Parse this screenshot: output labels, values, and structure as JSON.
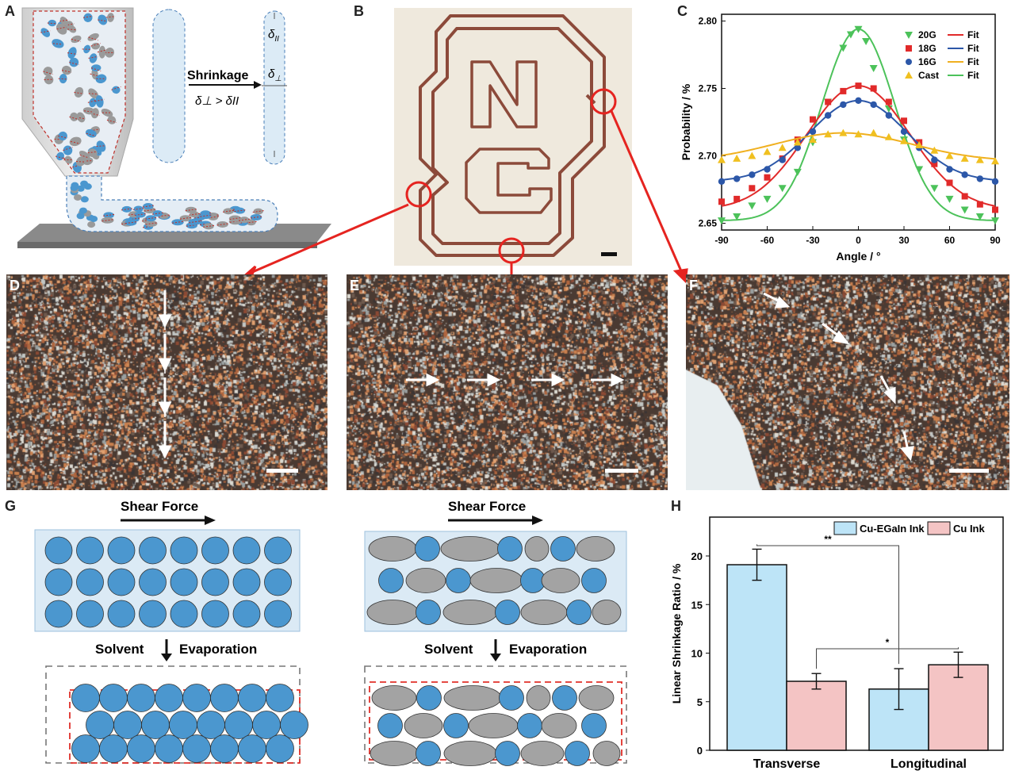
{
  "panels": {
    "A": {
      "label": "A",
      "shrinkage_label": "Shrinkage",
      "delta_parallel": "δ",
      "delta_parallel_sub": "II",
      "delta_perp": "δ",
      "delta_perp_sub": "⊥",
      "relation": "δ⊥ > δII"
    },
    "B": {
      "label": "B",
      "letters": [
        "N",
        "C"
      ]
    },
    "C": {
      "label": "C"
    },
    "D": {
      "label": "D"
    },
    "E": {
      "label": "E"
    },
    "F": {
      "label": "F"
    },
    "G": {
      "label": "G",
      "shear_force": "Shear Force",
      "solvent": "Solvent",
      "evaporation": "Evaporation"
    },
    "H": {
      "label": "H"
    }
  },
  "colors": {
    "blue_particle": "#4b97cf",
    "gray_particle": "#a3a3a3",
    "light_blue_box": "#dbeaf5",
    "red_dash": "#e0302a",
    "copper": "#8c4a3a",
    "bar_blue": "#bde4f7",
    "bar_pink": "#f4c4c4"
  },
  "chart_data": [
    {
      "type": "scatter",
      "panel": "C",
      "xlabel": "Angle / °",
      "ylabel": "Probability / %",
      "xlim": [
        -90,
        90
      ],
      "ylim": [
        2.645,
        2.805
      ],
      "xticks": [
        "-90",
        "-60",
        "-30",
        "0",
        "30",
        "60",
        "90"
      ],
      "yticks": [
        "2.65",
        "2.70",
        "2.75",
        "2.80"
      ],
      "legend_position": "top-right",
      "legend_fit_label": "Fit",
      "series": [
        {
          "name": "20G",
          "marker": "triangle-down",
          "color": "#4cc25a",
          "fit_color": "#e12a2a",
          "x": [
            -90,
            -80,
            -70,
            -60,
            -50,
            -40,
            -30,
            -20,
            -10,
            -5,
            0,
            5,
            10,
            20,
            30,
            40,
            50,
            60,
            70,
            80,
            90
          ],
          "y": [
            2.652,
            2.655,
            2.663,
            2.668,
            2.676,
            2.688,
            2.71,
            2.74,
            2.78,
            2.79,
            2.794,
            2.785,
            2.765,
            2.735,
            2.712,
            2.69,
            2.676,
            2.668,
            2.66,
            2.655,
            2.652
          ]
        },
        {
          "name": "18G",
          "marker": "square",
          "color": "#e12a2a",
          "fit_color": "#2c57a8",
          "x": [
            -90,
            -80,
            -70,
            -60,
            -50,
            -40,
            -30,
            -20,
            -10,
            0,
            10,
            20,
            30,
            40,
            50,
            60,
            70,
            80,
            90
          ],
          "y": [
            2.666,
            2.668,
            2.676,
            2.684,
            2.698,
            2.712,
            2.727,
            2.74,
            2.748,
            2.752,
            2.75,
            2.74,
            2.726,
            2.71,
            2.694,
            2.68,
            2.67,
            2.664,
            2.66
          ]
        },
        {
          "name": "16G",
          "marker": "circle",
          "color": "#2c57a8",
          "fit_color": "#f0b020",
          "x": [
            -90,
            -80,
            -70,
            -60,
            -50,
            -40,
            -30,
            -20,
            -10,
            0,
            10,
            20,
            30,
            40,
            50,
            60,
            70,
            80,
            90
          ],
          "y": [
            2.681,
            2.683,
            2.686,
            2.69,
            2.697,
            2.706,
            2.718,
            2.73,
            2.738,
            2.741,
            2.738,
            2.73,
            2.718,
            2.706,
            2.697,
            2.69,
            2.686,
            2.683,
            2.681
          ]
        },
        {
          "name": "Cast",
          "marker": "triangle-up",
          "color": "#f0c020",
          "fit_color": "#4cc25a",
          "x": [
            -90,
            -80,
            -70,
            -60,
            -50,
            -40,
            -30,
            -20,
            -10,
            0,
            10,
            20,
            30,
            40,
            50,
            60,
            70,
            80,
            90
          ],
          "y": [
            2.697,
            2.698,
            2.7,
            2.703,
            2.706,
            2.71,
            2.712,
            2.716,
            2.717,
            2.716,
            2.717,
            2.714,
            2.711,
            2.708,
            2.704,
            2.7,
            2.698,
            2.697,
            2.696
          ]
        }
      ]
    },
    {
      "type": "bar",
      "panel": "H",
      "ylabel": "Linear Shrinkage Ratio / %",
      "ylim": [
        0,
        24
      ],
      "yticks": [
        "0",
        "5",
        "10",
        "15",
        "20"
      ],
      "categories": [
        "Transverse",
        "Longitudinal"
      ],
      "legend_position": "top-right",
      "series": [
        {
          "name": "Cu-EGaIn Ink",
          "values": [
            19.1,
            6.3
          ],
          "errors": [
            1.6,
            2.1
          ]
        },
        {
          "name": "Cu Ink",
          "values": [
            7.1,
            8.8
          ],
          "errors": [
            0.8,
            1.3
          ]
        }
      ],
      "significance": [
        {
          "label": "**",
          "from": "Transverse Cu-EGaIn Ink",
          "to": "Longitudinal Cu-EGaIn Ink"
        },
        {
          "label": "*",
          "from": "Transverse Cu Ink",
          "to": "Longitudinal Cu Ink"
        }
      ]
    }
  ]
}
